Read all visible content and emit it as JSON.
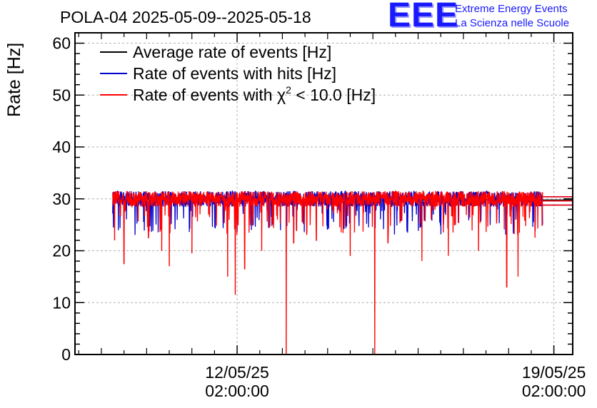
{
  "title": "POLA-04 2025-05-09--2025-05-18",
  "logo": {
    "mark": "EEE",
    "line1": "Extreme Energy Events",
    "line2": "La Scienza nelle Scuole",
    "color": "#1a1aff"
  },
  "chart_data": {
    "type": "line",
    "title": "POLA-04 2025-05-09--2025-05-18",
    "ylabel": "Rate [Hz]",
    "xlabel": "",
    "ylim": [
      0,
      62
    ],
    "xlim": [
      "2025-05-08 12:00",
      "2025-05-19 12:00"
    ],
    "grid": true,
    "legend_position": "top-left",
    "yticks": [
      0,
      10,
      20,
      30,
      40,
      50,
      60
    ],
    "xticks": [
      {
        "x": "2025-05-12 02:00",
        "line1": "12/05/25",
        "line2": "02:00:00"
      },
      {
        "x": "2025-05-19 02:00",
        "line1": "19/05/25",
        "line2": "02:00:00"
      }
    ],
    "legend": [
      {
        "label": "Average rate of events [Hz]",
        "color": "#000000"
      },
      {
        "label": "Rate of events with hits [Hz]",
        "color": "#0000cc"
      },
      {
        "label_prefix": "Rate of events with ",
        "label_symbol": "χ",
        "label_sup": "2",
        "label_suffix": " < 10.0 [Hz]",
        "color": "#ff0000"
      }
    ],
    "series": [
      {
        "name": "Average rate of events [Hz]",
        "color": "#000000",
        "x_range": [
          "2025-05-09 08:00",
          "2025-05-19 12:00"
        ],
        "value": 29.8
      },
      {
        "name": "Rate of events with hits [Hz]",
        "color": "#0000cc",
        "x_range": [
          "2025-05-09 08:00",
          "2025-05-18 20:00"
        ],
        "baseline": 30.0,
        "noise": 1.5
      },
      {
        "name": "Rate of events with χ2 < 10.0 [Hz]",
        "color": "#ff0000",
        "x_range": [
          "2025-05-09 08:00",
          "2025-05-18 20:00"
        ],
        "baseline": 30.0,
        "noise": 1.5,
        "dips": [
          {
            "x": "2025-05-09 09:00",
            "y": 22
          },
          {
            "x": "2025-05-09 14:00",
            "y": 17.5
          },
          {
            "x": "2025-05-10 03:00",
            "y": 22.5
          },
          {
            "x": "2025-05-10 10:00",
            "y": 20
          },
          {
            "x": "2025-05-10 14:00",
            "y": 17
          },
          {
            "x": "2025-05-11 02:00",
            "y": 19.5
          },
          {
            "x": "2025-05-11 21:00",
            "y": 15
          },
          {
            "x": "2025-05-12 01:00",
            "y": 11.5
          },
          {
            "x": "2025-05-12 06:00",
            "y": 16.5
          },
          {
            "x": "2025-05-12 15:00",
            "y": 20
          },
          {
            "x": "2025-05-13 04:00",
            "y": 0
          },
          {
            "x": "2025-05-13 08:00",
            "y": 21.5
          },
          {
            "x": "2025-05-13 20:00",
            "y": 22
          },
          {
            "x": "2025-05-14 14:00",
            "y": 19
          },
          {
            "x": "2025-05-15 03:00",
            "y": 0
          },
          {
            "x": "2025-05-15 10:00",
            "y": 21.5
          },
          {
            "x": "2025-05-16 04:00",
            "y": 18
          },
          {
            "x": "2025-05-16 18:00",
            "y": 19
          },
          {
            "x": "2025-05-17 10:00",
            "y": 20
          },
          {
            "x": "2025-05-18 01:00",
            "y": 13
          },
          {
            "x": "2025-05-18 07:00",
            "y": 15
          },
          {
            "x": "2025-05-18 16:00",
            "y": 22.5
          }
        ]
      }
    ]
  }
}
